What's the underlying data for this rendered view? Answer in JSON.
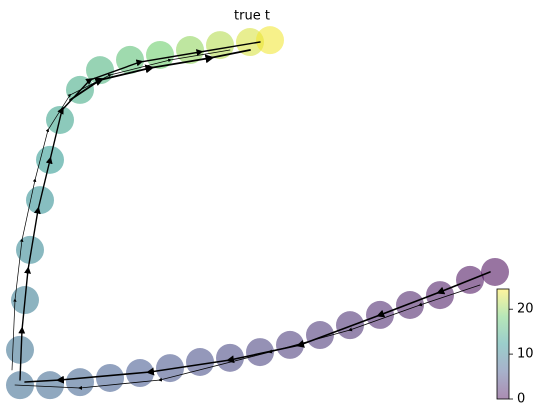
{
  "chart_data": {
    "type": "scatter",
    "title": "true t",
    "x": [
      99,
      94,
      88,
      82,
      76,
      70,
      64,
      58,
      52,
      46,
      40,
      34,
      28,
      22,
      16,
      10,
      4,
      4,
      5,
      6,
      8,
      10,
      12,
      16,
      20,
      26,
      32,
      38,
      44,
      50,
      54
    ],
    "y": [
      33.7,
      31.6,
      27.6,
      25,
      22.4,
      19.7,
      17.1,
      14.5,
      12.6,
      11.1,
      10,
      8.4,
      7.1,
      5.8,
      4.7,
      3.9,
      3.9,
      13.2,
      26.3,
      39.5,
      52.6,
      63.2,
      73.7,
      81.6,
      86.8,
      89.5,
      90.8,
      92.1,
      93.4,
      94.2,
      94.7
    ],
    "values": [
      0,
      0.5,
      1,
      1.5,
      2,
      2.5,
      3,
      3.5,
      4,
      4.5,
      5,
      5.5,
      6,
      6.5,
      7,
      7.5,
      8,
      8.5,
      9.5,
      10.5,
      11.5,
      12.5,
      13.5,
      14.5,
      15.5,
      17,
      18.5,
      20,
      21.5,
      23,
      24
    ],
    "xlim": [
      0,
      100
    ],
    "ylim": [
      0,
      100
    ],
    "colormap": "viridis",
    "clim": [
      0,
      24.5
    ],
    "cticks": [
      0,
      10,
      20
    ]
  }
}
